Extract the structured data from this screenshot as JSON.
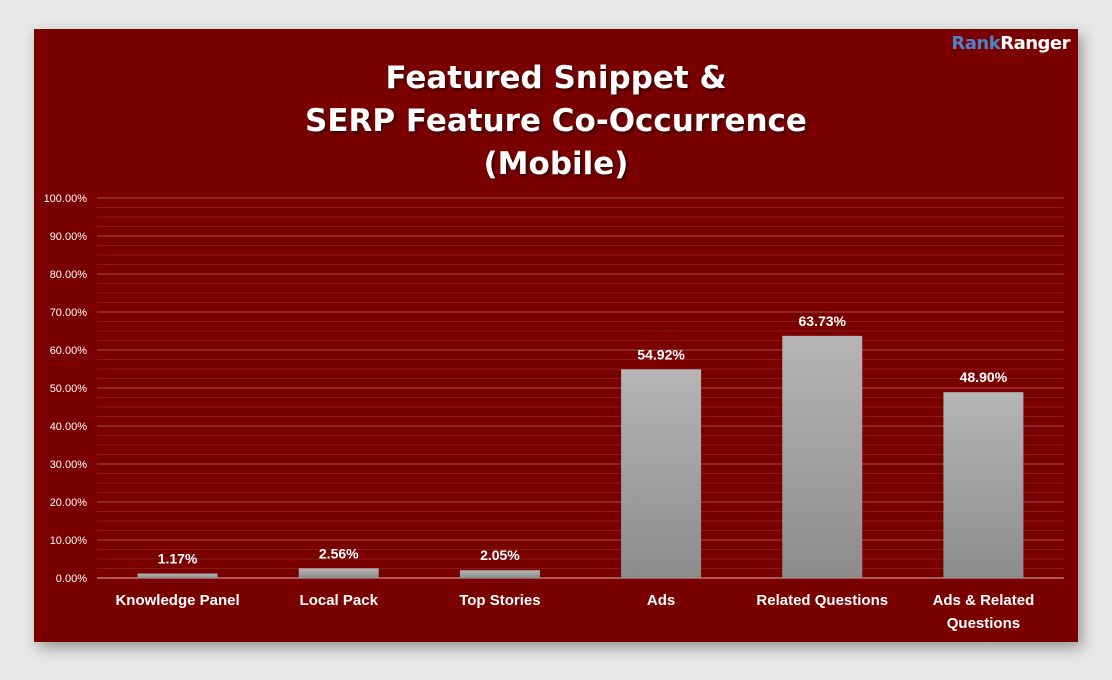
{
  "brand": {
    "part1": "Rank",
    "part2": "Ranger"
  },
  "chart_data": {
    "type": "bar",
    "title_lines": [
      "Featured Snippet &",
      "SERP Feature Co-Occurrence",
      "(Mobile)"
    ],
    "categories": [
      [
        "Knowledge Panel"
      ],
      [
        "Local Pack"
      ],
      [
        "Top Stories"
      ],
      [
        "Ads"
      ],
      [
        "Related Questions"
      ],
      [
        "Ads & Related",
        "Questions"
      ]
    ],
    "values": [
      1.17,
      2.56,
      2.05,
      54.92,
      63.73,
      48.9
    ],
    "data_labels": [
      "1.17%",
      "2.56%",
      "2.05%",
      "54.92%",
      "63.73%",
      "48.90%"
    ],
    "ylim": [
      0,
      100
    ],
    "y_ticks": [
      0,
      10,
      20,
      30,
      40,
      50,
      60,
      70,
      80,
      90,
      100
    ],
    "y_tick_labels": [
      "0.00%",
      "10.00%",
      "20.00%",
      "30.00%",
      "40.00%",
      "50.00%",
      "60.00%",
      "70.00%",
      "80.00%",
      "90.00%",
      "100.00%"
    ],
    "grid": true,
    "legend": "none",
    "colors": {
      "background": "#7a0000",
      "bar_top": "#b5b5b5",
      "bar_bottom": "#8c8c8c",
      "text": "#ffffff"
    }
  }
}
